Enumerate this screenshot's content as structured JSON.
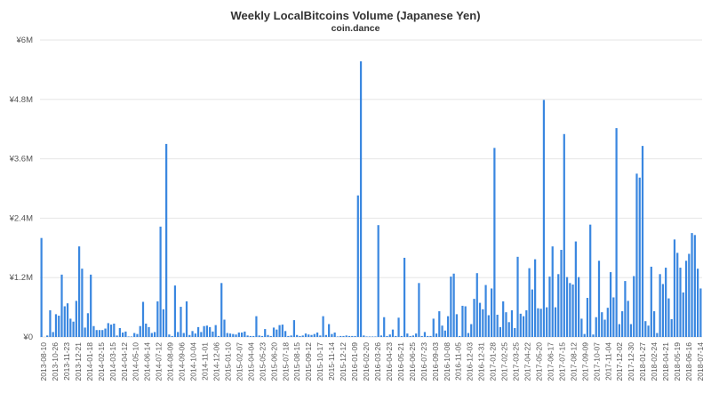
{
  "chart_data": {
    "type": "bar",
    "title": "Weekly LocalBitcoins Volume (Japanese Yen)",
    "subtitle": "coin.dance",
    "xlabel": "",
    "ylabel": "",
    "ylim": [
      0,
      6000000
    ],
    "yticks": [
      0,
      1200000,
      2400000,
      3600000,
      4800000,
      6000000
    ],
    "ytick_labels": [
      "¥0",
      "¥1.2M",
      "¥2.4M",
      "¥3.6M",
      "¥4.8M",
      "¥6M"
    ],
    "xtick_labels": [
      "2013-08-10",
      "2013-10-26",
      "2013-11-23",
      "2013-12-21",
      "2014-01-18",
      "2014-02-15",
      "2014-03-15",
      "2014-04-12",
      "2014-05-10",
      "2014-06-14",
      "2014-07-12",
      "2014-08-09",
      "2014-09-06",
      "2014-10-04",
      "2014-11-01",
      "2014-12-06",
      "2015-01-10",
      "2015-02-07",
      "2015-04-04",
      "2015-05-23",
      "2015-06-20",
      "2015-07-18",
      "2015-08-15",
      "2015-09-12",
      "2015-10-17",
      "2015-11-14",
      "2015-12-12",
      "2016-01-09",
      "2016-02-20",
      "2016-03-26",
      "2016-04-23",
      "2016-05-21",
      "2016-06-25",
      "2016-07-23",
      "2016-09-03",
      "2016-10-08",
      "2016-11-05",
      "2016-12-03",
      "2016-12-31",
      "2017-01-28",
      "2017-02-25",
      "2017-03-25",
      "2017-04-22",
      "2017-05-20",
      "2017-06-17",
      "2017-07-15",
      "2017-08-12",
      "2017-09-09",
      "2017-10-07",
      "2017-11-04",
      "2017-12-02",
      "2017-12-30",
      "2018-01-27",
      "2018-02-24",
      "2018-04-21",
      "2018-05-19",
      "2018-06-16",
      "2018-07-14"
    ],
    "grid": true,
    "legend": "none",
    "bar_color": "#3a87e0",
    "values": [
      2000000,
      0,
      30000,
      540000,
      100000,
      460000,
      430000,
      1260000,
      620000,
      680000,
      370000,
      310000,
      730000,
      1830000,
      1380000,
      190000,
      480000,
      1260000,
      220000,
      140000,
      140000,
      140000,
      170000,
      280000,
      250000,
      270000,
      30000,
      180000,
      90000,
      110000,
      10000,
      10000,
      80000,
      60000,
      220000,
      710000,
      270000,
      200000,
      80000,
      100000,
      720000,
      2230000,
      560000,
      3900000,
      50000,
      20000,
      1040000,
      100000,
      610000,
      80000,
      720000,
      40000,
      120000,
      70000,
      200000,
      100000,
      220000,
      230000,
      200000,
      110000,
      240000,
      20000,
      1090000,
      350000,
      80000,
      70000,
      60000,
      50000,
      90000,
      90000,
      110000,
      30000,
      20000,
      20000,
      420000,
      30000,
      20000,
      160000,
      40000,
      20000,
      190000,
      150000,
      240000,
      250000,
      120000,
      20000,
      30000,
      340000,
      40000,
      20000,
      30000,
      70000,
      50000,
      40000,
      60000,
      90000,
      30000,
      420000,
      40000,
      260000,
      60000,
      90000,
      10000,
      20000,
      20000,
      30000,
      20000,
      20000,
      20000,
      2860000,
      5570000,
      30000,
      10000,
      10000,
      10000,
      10000,
      2260000,
      30000,
      400000,
      20000,
      50000,
      150000,
      20000,
      390000,
      20000,
      1600000,
      70000,
      20000,
      30000,
      70000,
      1090000,
      20000,
      100000,
      20000,
      20000,
      370000,
      70000,
      520000,
      230000,
      130000,
      420000,
      1220000,
      1280000,
      460000,
      20000,
      630000,
      620000,
      80000,
      260000,
      770000,
      1290000,
      690000,
      560000,
      1050000,
      440000,
      980000,
      3820000,
      450000,
      200000,
      720000,
      500000,
      300000,
      540000,
      180000,
      1620000,
      470000,
      420000,
      540000,
      1390000,
      960000,
      1570000,
      580000,
      570000,
      4790000,
      600000,
      1220000,
      1830000,
      600000,
      1270000,
      1760000,
      4100000,
      1210000,
      1090000,
      1060000,
      1930000,
      1210000,
      370000,
      60000,
      790000,
      2270000,
      50000,
      400000,
      1540000,
      500000,
      350000,
      590000,
      1310000,
      800000,
      4220000,
      260000,
      520000,
      1130000,
      730000,
      260000,
      1230000,
      3300000,
      3220000,
      3860000,
      320000,
      230000,
      1420000,
      520000,
      80000,
      1270000,
      1070000,
      1400000,
      780000,
      360000,
      1970000,
      1700000,
      1400000,
      900000,
      1540000,
      1680000,
      2100000,
      2060000,
      1380000,
      980000
    ]
  }
}
